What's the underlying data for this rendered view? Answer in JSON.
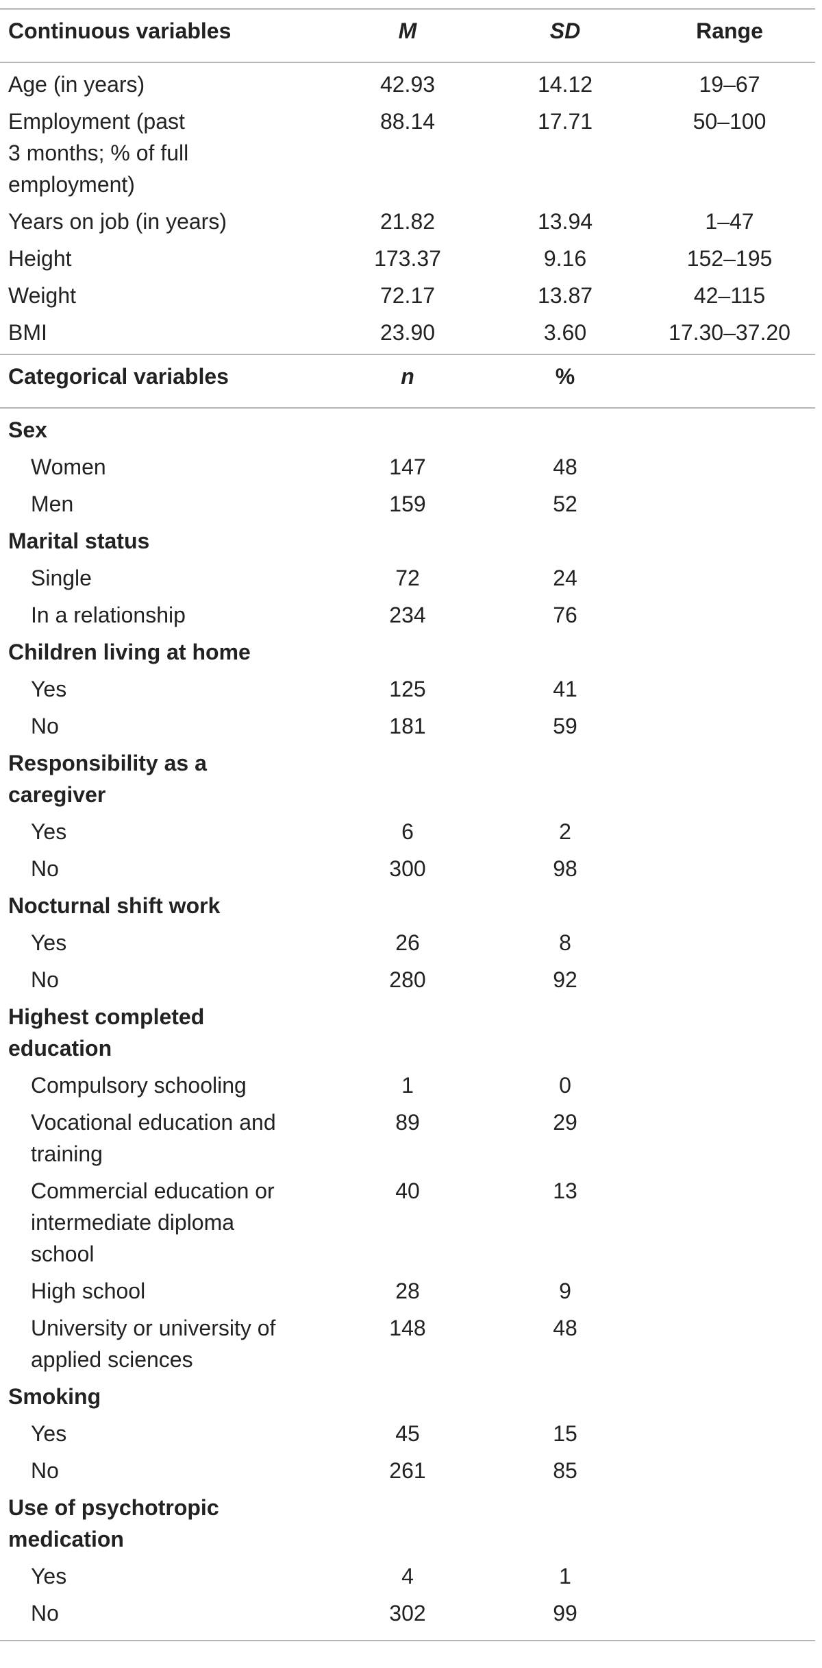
{
  "continuous_header": {
    "label": "Continuous variables",
    "m": "M",
    "sd": "SD",
    "range": "Range"
  },
  "continuous_rows": [
    {
      "label": "Age (in years)",
      "m": "42.93",
      "sd": "14.12",
      "range": "19–67"
    },
    {
      "label": "Employment (past\n3 months; % of full\nemployment)",
      "m": "88.14",
      "sd": "17.71",
      "range": "50–100"
    },
    {
      "label": "Years on job (in years)",
      "m": "21.82",
      "sd": "13.94",
      "range": "1–47"
    },
    {
      "label": "Height",
      "m": "173.37",
      "sd": "9.16",
      "range": "152–195"
    },
    {
      "label": "Weight",
      "m": "72.17",
      "sd": "13.87",
      "range": "42–115"
    },
    {
      "label": "BMI",
      "m": "23.90",
      "sd": "3.60",
      "range": "17.30–37.20"
    }
  ],
  "categorical_header": {
    "label": "Categorical variables",
    "n": "n",
    "pct": "%"
  },
  "categories": [
    {
      "title": "Sex",
      "items": [
        {
          "label": "Women",
          "n": "147",
          "pct": "48"
        },
        {
          "label": "Men",
          "n": "159",
          "pct": "52"
        }
      ]
    },
    {
      "title": "Marital status",
      "items": [
        {
          "label": "Single",
          "n": "72",
          "pct": "24"
        },
        {
          "label": "In a relationship",
          "n": "234",
          "pct": "76"
        }
      ]
    },
    {
      "title": "Children living at home",
      "items": [
        {
          "label": "Yes",
          "n": "125",
          "pct": "41"
        },
        {
          "label": "No",
          "n": "181",
          "pct": "59"
        }
      ]
    },
    {
      "title": "Responsibility as a\ncaregiver",
      "items": [
        {
          "label": "Yes",
          "n": "6",
          "pct": "2"
        },
        {
          "label": "No",
          "n": "300",
          "pct": "98"
        }
      ]
    },
    {
      "title": "Nocturnal shift work",
      "items": [
        {
          "label": "Yes",
          "n": "26",
          "pct": "8"
        },
        {
          "label": "No",
          "n": "280",
          "pct": "92"
        }
      ]
    },
    {
      "title": "Highest completed\neducation",
      "items": [
        {
          "label": "Compulsory schooling",
          "n": "1",
          "pct": "0"
        },
        {
          "label": "Vocational education and\ntraining",
          "n": "89",
          "pct": "29"
        },
        {
          "label": "Commercial education or\nintermediate diploma\nschool",
          "n": "40",
          "pct": "13"
        },
        {
          "label": "High school",
          "n": "28",
          "pct": "9"
        },
        {
          "label": "University or university of\napplied sciences",
          "n": "148",
          "pct": "48"
        }
      ]
    },
    {
      "title": "Smoking",
      "items": [
        {
          "label": "Yes",
          "n": "45",
          "pct": "15"
        },
        {
          "label": "No",
          "n": "261",
          "pct": "85"
        }
      ]
    },
    {
      "title": "Use of psychotropic\nmedication",
      "items": [
        {
          "label": "Yes",
          "n": "4",
          "pct": "1"
        },
        {
          "label": "No",
          "n": "302",
          "pct": "99"
        }
      ]
    }
  ]
}
